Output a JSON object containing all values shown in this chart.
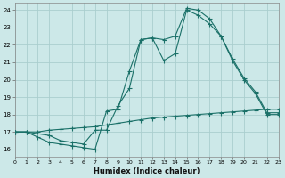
{
  "xlabel": "Humidex (Indice chaleur)",
  "bg_color": "#cce8e8",
  "grid_color": "#aacece",
  "line_color": "#1a7068",
  "xlim": [
    0,
    23
  ],
  "ylim": [
    15.6,
    24.4
  ],
  "xticks": [
    0,
    1,
    2,
    3,
    4,
    5,
    6,
    7,
    8,
    9,
    10,
    11,
    12,
    13,
    14,
    15,
    16,
    17,
    18,
    19,
    20,
    21,
    22,
    23
  ],
  "yticks": [
    16,
    17,
    18,
    19,
    20,
    21,
    22,
    23,
    24
  ],
  "line1_x": [
    0,
    1,
    2,
    3,
    4,
    5,
    6,
    7,
    8,
    9,
    10,
    11,
    12,
    13,
    14,
    15,
    16,
    17,
    18,
    19,
    20,
    21,
    22,
    23
  ],
  "line1_y": [
    17.0,
    17.0,
    16.7,
    16.4,
    16.3,
    16.2,
    16.1,
    16.0,
    18.2,
    18.3,
    20.5,
    22.3,
    22.4,
    21.1,
    21.5,
    24.0,
    23.7,
    23.2,
    22.5,
    21.1,
    20.0,
    19.2,
    18.0,
    18.0
  ],
  "line2_x": [
    0,
    1,
    3,
    4,
    5,
    6,
    7,
    8,
    9,
    10,
    11,
    12,
    13,
    14,
    15,
    16,
    17,
    18,
    19,
    20,
    21,
    22,
    23
  ],
  "line2_y": [
    17.0,
    17.0,
    16.8,
    16.5,
    16.4,
    16.3,
    17.1,
    17.1,
    18.5,
    19.5,
    22.3,
    22.4,
    22.3,
    22.5,
    24.1,
    24.0,
    23.5,
    22.5,
    21.2,
    20.1,
    19.3,
    18.1,
    18.1
  ],
  "line3_x": [
    0,
    1,
    2,
    3,
    4,
    5,
    6,
    7,
    8,
    9,
    10,
    11,
    12,
    13,
    14,
    15,
    16,
    17,
    18,
    19,
    20,
    21,
    22,
    23
  ],
  "line3_y": [
    17.0,
    17.0,
    17.0,
    17.1,
    17.15,
    17.2,
    17.25,
    17.3,
    17.4,
    17.5,
    17.6,
    17.7,
    17.8,
    17.85,
    17.9,
    17.95,
    18.0,
    18.05,
    18.1,
    18.15,
    18.2,
    18.25,
    18.3,
    18.3
  ]
}
